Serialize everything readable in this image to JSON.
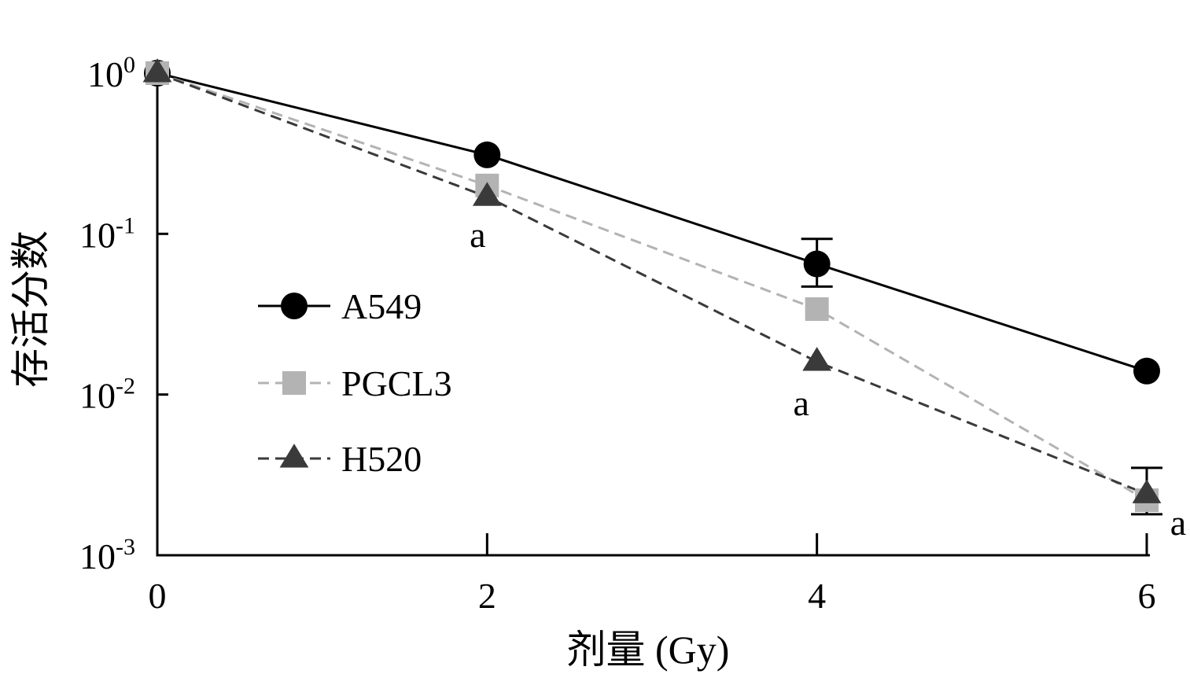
{
  "chart_data": {
    "type": "line",
    "xlabel": "剂量 (Gy)",
    "ylabel": "存活分数",
    "x": [
      0,
      2,
      4,
      6
    ],
    "xticks": [
      0,
      2,
      4,
      6
    ],
    "xlim": [
      0,
      6
    ],
    "yscale": "log",
    "ylim": [
      0.001,
      1
    ],
    "yticks": [
      {
        "value": 1,
        "base": "10",
        "exp": "0"
      },
      {
        "value": 0.1,
        "base": "10",
        "exp": "-1"
      },
      {
        "value": 0.01,
        "base": "10",
        "exp": "-2"
      },
      {
        "value": 0.001,
        "base": "10",
        "exp": "-3"
      }
    ],
    "grid": false,
    "legend_position": "middle-left",
    "series": [
      {
        "name": "A549",
        "marker": "circle",
        "line": "solid",
        "color": "#000000",
        "values": [
          1,
          0.31,
          0.065,
          0.014
        ],
        "errors": [
          null,
          null,
          [
            0.047,
            0.093
          ],
          null
        ]
      },
      {
        "name": "PGCL3",
        "marker": "square",
        "line": "dashed",
        "color": "#b3b3b3",
        "values": [
          1,
          0.2,
          0.034,
          0.0022
        ],
        "errors": [
          null,
          null,
          null,
          null
        ]
      },
      {
        "name": "H520",
        "marker": "triangle",
        "line": "dashed",
        "color": "#3a3a3a",
        "values": [
          1,
          0.17,
          0.016,
          0.0024
        ],
        "errors": [
          null,
          null,
          null,
          [
            0.0018,
            0.0035
          ]
        ]
      }
    ],
    "annotations": [
      {
        "x": 2,
        "text": "a"
      },
      {
        "x": 4,
        "text": "a"
      },
      {
        "x": 6,
        "text": "a"
      }
    ]
  }
}
